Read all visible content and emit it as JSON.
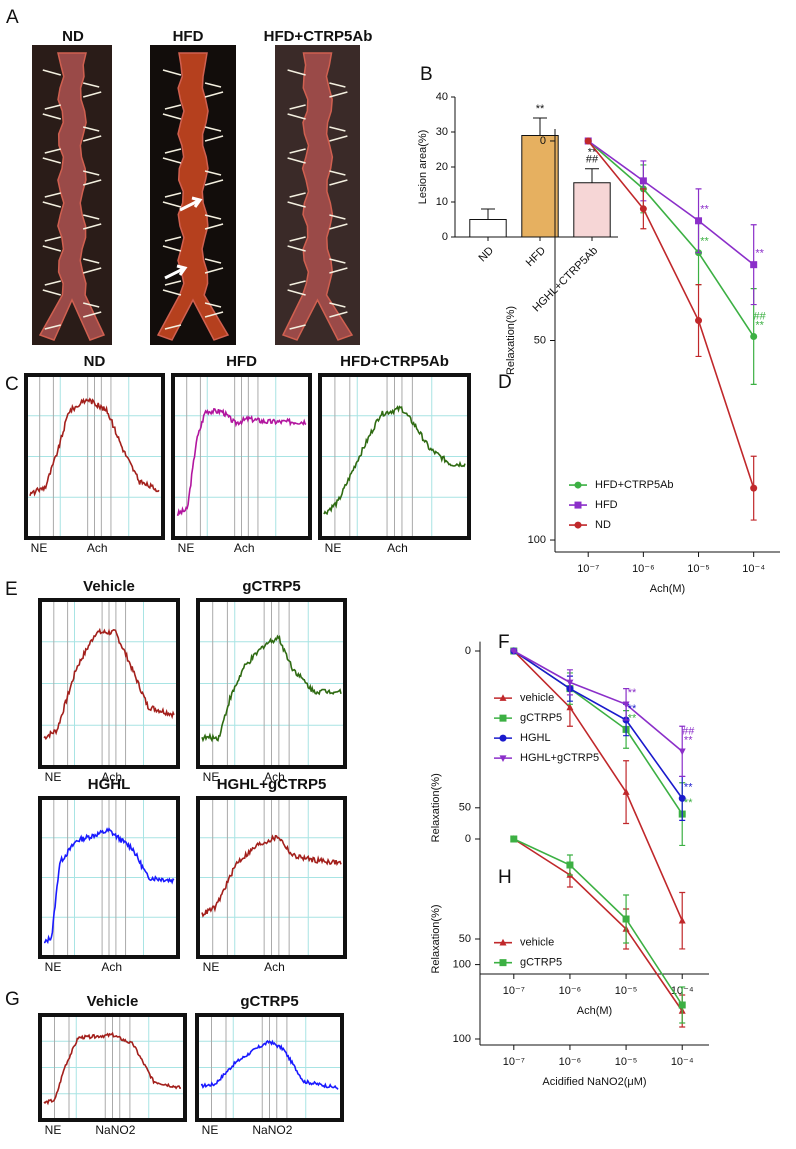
{
  "figure": {
    "panel_letters": [
      "A",
      "B",
      "C",
      "D",
      "E",
      "F",
      "G",
      "H"
    ],
    "photos": {
      "labels": [
        "ND",
        "HFD",
        "HFD+CTRP5Ab"
      ]
    },
    "traces": [
      {
        "items": [
          {
            "title": "ND",
            "color": "#a3201c",
            "markers": [
              "NE",
              "Ach"
            ]
          },
          {
            "title": "HFD",
            "color": "#b2169f",
            "markers": [
              "NE",
              "Ach"
            ]
          },
          {
            "title": "HFD+CTRP5Ab",
            "color": "#2f6b12",
            "markers": [
              "NE",
              "Ach"
            ]
          }
        ]
      },
      {
        "items": [
          {
            "title": "Vehicle",
            "color": "#a3201c",
            "markers": [
              "NE",
              "Ach"
            ]
          },
          {
            "title": "gCTRP5",
            "color": "#2f6b12",
            "markers": [
              "NE",
              "Ach"
            ]
          },
          {
            "title": "HGHL",
            "color": "#1a1aff",
            "markers": [
              "NE",
              "Ach"
            ]
          },
          {
            "title": "HGHL+gCTRP5",
            "color": "#a3201c",
            "markers": [
              "NE",
              "Ach"
            ]
          }
        ]
      },
      {
        "items": [
          {
            "title": "Vehicle",
            "color": "#a3201c",
            "markers": [
              "NE",
              "NaNO2"
            ]
          },
          {
            "title": "gCTRP5",
            "color": "#1a1aff",
            "markers": [
              "NE",
              "NaNO2"
            ]
          }
        ]
      }
    ]
  },
  "chart_data": [
    {
      "type": "bar",
      "ylabel": "Lesion area(%)",
      "categories": [
        "ND",
        "HFD",
        "HGHL+CTRP5Ab"
      ],
      "values": [
        5,
        29,
        15.5
      ],
      "errors": [
        3,
        5,
        4
      ],
      "colors": [
        "#ffffff",
        "#e6b060",
        "#f6d6d6"
      ],
      "ylim": [
        0,
        40
      ],
      "yticks": [
        0,
        10,
        20,
        30,
        40
      ],
      "annotations": [
        {
          "text": "**",
          "category": "HFD"
        },
        {
          "text": "##",
          "category": "HGHL+CTRP5Ab"
        },
        {
          "text": "**",
          "category": "HGHL+CTRP5Ab"
        }
      ]
    },
    {
      "type": "line",
      "xlabel": "Ach(M)",
      "ylabel": "Relaxation(%)",
      "log_x": true,
      "y_reversed": true,
      "legend": "lower-left",
      "x": [
        1e-07,
        1e-06,
        1e-05,
        0.0001
      ],
      "xlim": [
        2.5e-08,
        0.0003
      ],
      "ylim": [
        -3,
        103
      ],
      "xticks": [
        {
          "value": 1e-07,
          "label": "10⁻⁷"
        },
        {
          "value": 1e-06,
          "label": "10⁻⁶"
        },
        {
          "value": 1e-05,
          "label": "10⁻⁵"
        },
        {
          "value": 0.0001,
          "label": "10⁻⁴"
        }
      ],
      "yticks": [
        0,
        50,
        100
      ],
      "series": [
        {
          "name": "HFD+CTRP5Ab",
          "color": "#3cb043",
          "marker": "circle",
          "values": [
            0,
            12,
            28,
            49
          ],
          "errors": [
            0,
            6,
            8,
            12
          ]
        },
        {
          "name": "HFD",
          "color": "#8b2fc9",
          "marker": "square",
          "values": [
            0,
            10,
            20,
            31
          ],
          "errors": [
            0,
            5,
            8,
            10
          ]
        },
        {
          "name": "ND",
          "color": "#c0282b",
          "marker": "circle",
          "values": [
            0,
            17,
            45,
            87
          ],
          "errors": [
            0,
            5,
            9,
            8
          ]
        }
      ],
      "annotations": [
        {
          "text": "**",
          "series": "HFD",
          "x": 1e-05
        },
        {
          "text": "**",
          "series": "HFD",
          "x": 0.0001
        },
        {
          "text": "**",
          "series": "HFD+CTRP5Ab",
          "x": 1e-05
        },
        {
          "text": "**",
          "series": "HFD+CTRP5Ab",
          "x": 0.0001
        },
        {
          "text": "##",
          "series": "HFD+CTRP5Ab",
          "x": 0.0001
        }
      ]
    },
    {
      "type": "line",
      "xlabel": "Ach(M)",
      "ylabel": "Relaxation(%)",
      "log_x": true,
      "y_reversed": true,
      "legend": "upper-left",
      "x": [
        1e-07,
        1e-06,
        1e-05,
        0.0001
      ],
      "xlim": [
        2.5e-08,
        0.0003
      ],
      "ylim": [
        -3,
        103
      ],
      "xticks": [
        {
          "value": 1e-07,
          "label": "10⁻⁷"
        },
        {
          "value": 1e-06,
          "label": "10⁻⁶"
        },
        {
          "value": 1e-05,
          "label": "10⁻⁵"
        },
        {
          "value": 0.0001,
          "label": "10⁻⁴"
        }
      ],
      "yticks": [
        0,
        50,
        100
      ],
      "series": [
        {
          "name": "vehicle",
          "color": "#c0282b",
          "marker": "triangle",
          "values": [
            0,
            18,
            45,
            86
          ],
          "errors": [
            0,
            6,
            10,
            9
          ]
        },
        {
          "name": "gCTRP5",
          "color": "#3cb043",
          "marker": "square",
          "values": [
            0,
            12,
            25,
            52
          ],
          "errors": [
            0,
            5,
            6,
            10
          ]
        },
        {
          "name": "HGHL",
          "color": "#1a1acc",
          "marker": "circle",
          "values": [
            0,
            12,
            22,
            47
          ],
          "errors": [
            0,
            4,
            5,
            7
          ]
        },
        {
          "name": "HGHL+gCTRP5",
          "color": "#8b2fc9",
          "marker": "triangle-down",
          "values": [
            0,
            10,
            17,
            32
          ],
          "errors": [
            0,
            4,
            5,
            8
          ]
        }
      ],
      "annotations": [
        {
          "text": "**",
          "series": "HGHL+gCTRP5",
          "x": 1e-05
        },
        {
          "text": "**",
          "series": "HGHL+gCTRP5",
          "x": 0.0001
        },
        {
          "text": "##",
          "series": "HGHL+gCTRP5",
          "x": 0.0001
        },
        {
          "text": "**",
          "series": "HGHL",
          "x": 1e-05
        },
        {
          "text": "**",
          "series": "HGHL",
          "x": 0.0001
        },
        {
          "text": "**",
          "series": "gCTRP5",
          "x": 1e-05
        },
        {
          "text": "**",
          "series": "gCTRP5",
          "x": 0.0001
        }
      ]
    },
    {
      "type": "line",
      "xlabel": "Acidified NaNO2(μM)",
      "ylabel": "Relaxation(%)",
      "log_x": true,
      "y_reversed": true,
      "legend": "center-left",
      "x": [
        1e-07,
        1e-06,
        1e-05,
        0.0001
      ],
      "xlim": [
        2.5e-08,
        0.0003
      ],
      "ylim": [
        -3,
        103
      ],
      "xticks": [
        {
          "value": 1e-07,
          "label": "10⁻⁷"
        },
        {
          "value": 1e-06,
          "label": "10⁻⁶"
        },
        {
          "value": 1e-05,
          "label": "10⁻⁵"
        },
        {
          "value": 0.0001,
          "label": "10⁻⁴"
        }
      ],
      "yticks": [
        0,
        50,
        100
      ],
      "series": [
        {
          "name": "vehicle",
          "color": "#c0282b",
          "marker": "triangle",
          "values": [
            0,
            18,
            45,
            86
          ],
          "errors": [
            0,
            6,
            10,
            8
          ]
        },
        {
          "name": "gCTRP5",
          "color": "#3cb043",
          "marker": "square",
          "values": [
            0,
            13,
            40,
            83
          ],
          "errors": [
            0,
            5,
            12,
            9
          ]
        }
      ]
    }
  ]
}
